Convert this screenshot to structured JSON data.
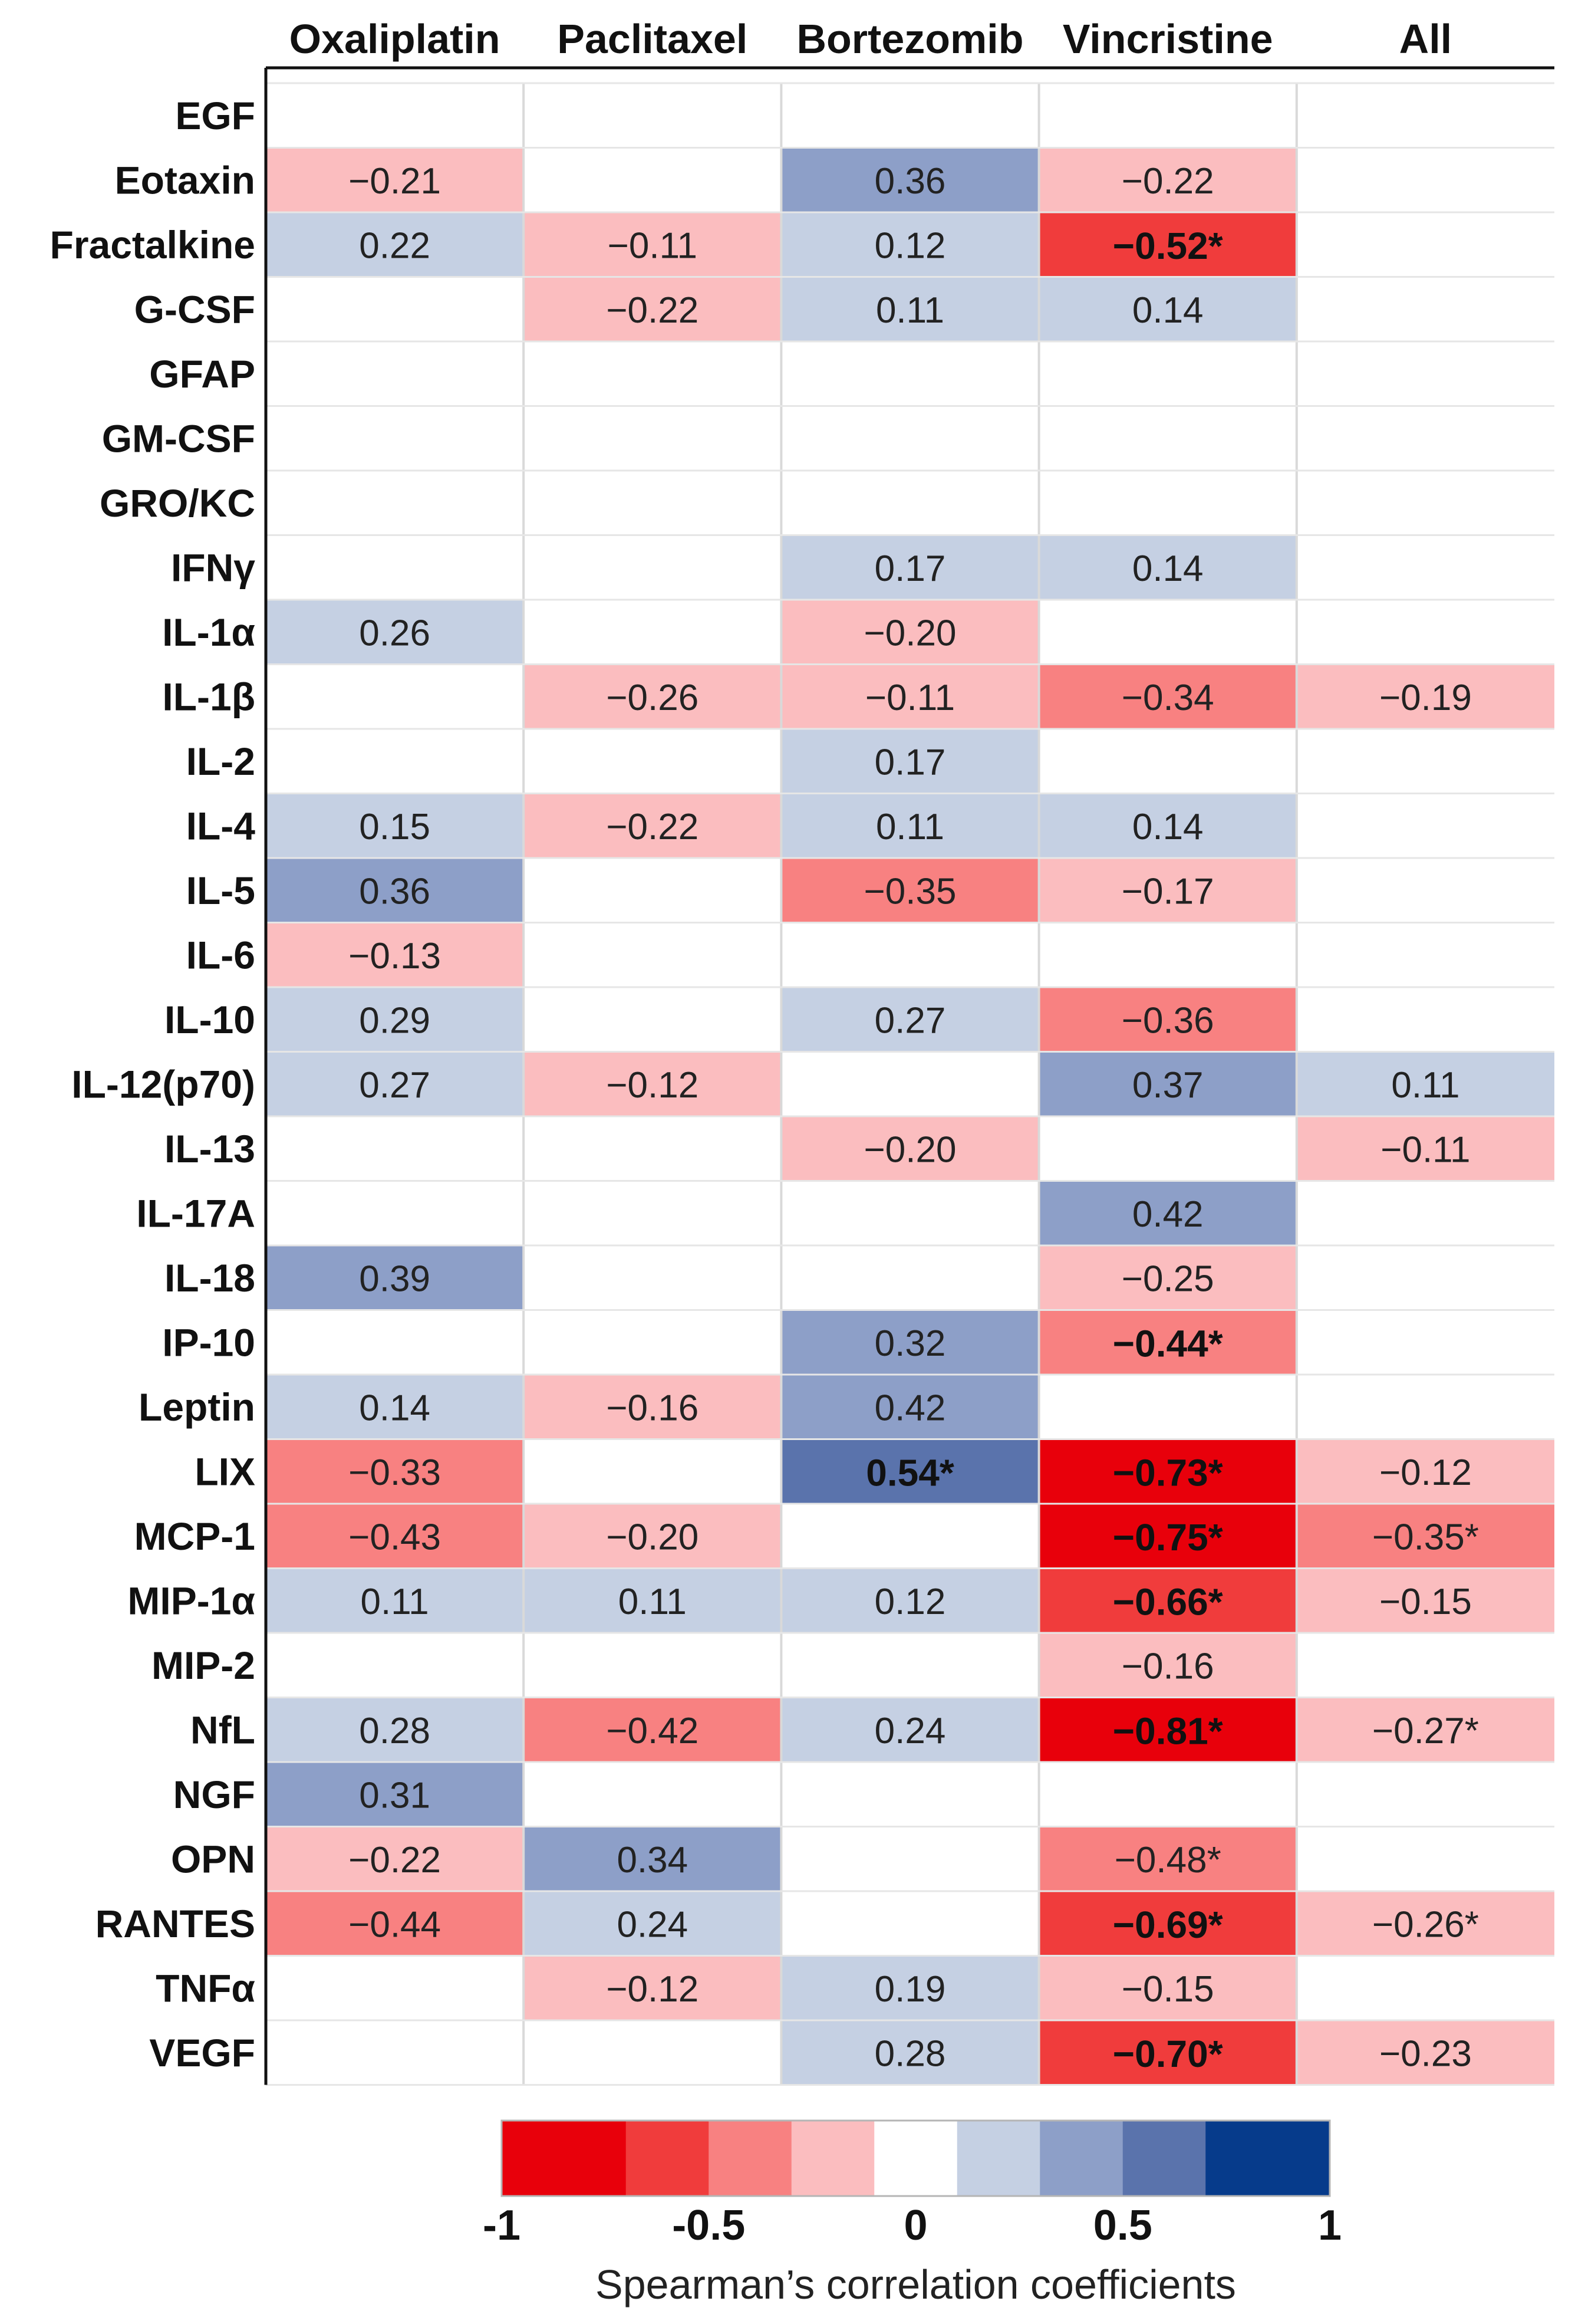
{
  "chart_data": {
    "type": "heatmap",
    "columns": [
      "Oxaliplatin",
      "Paclitaxel",
      "Bortezomib",
      "Vincristine",
      "All"
    ],
    "rows": [
      "EGF",
      "Eotaxin",
      "Fractalkine",
      "G-CSF",
      "GFAP",
      "GM-CSF",
      "GRO/KC",
      "IFNγ",
      "IL-1α",
      "IL-1β",
      "IL-2",
      "IL-4",
      "IL-5",
      "IL-6",
      "IL-10",
      "IL-12(p70)",
      "IL-13",
      "IL-17A",
      "IL-18",
      "IP-10",
      "Leptin",
      "LIX",
      "MCP-1",
      "MIP-1α",
      "MIP-2",
      "NfL",
      "NGF",
      "OPN",
      "RANTES",
      "TNFα",
      "VEGF"
    ],
    "values": [
      [
        null,
        null,
        null,
        null,
        null
      ],
      [
        -0.21,
        null,
        0.36,
        -0.22,
        null
      ],
      [
        0.22,
        -0.11,
        0.12,
        -0.52,
        null
      ],
      [
        null,
        -0.22,
        0.11,
        0.14,
        null
      ],
      [
        null,
        null,
        null,
        null,
        null
      ],
      [
        null,
        null,
        null,
        null,
        null
      ],
      [
        null,
        null,
        null,
        null,
        null
      ],
      [
        null,
        null,
        0.17,
        0.14,
        null
      ],
      [
        0.26,
        null,
        -0.2,
        null,
        null
      ],
      [
        null,
        -0.26,
        -0.11,
        -0.34,
        -0.19
      ],
      [
        null,
        null,
        0.17,
        null,
        null
      ],
      [
        0.15,
        -0.22,
        0.11,
        0.14,
        null
      ],
      [
        0.36,
        null,
        -0.35,
        -0.17,
        null
      ],
      [
        -0.13,
        null,
        null,
        null,
        null
      ],
      [
        0.29,
        null,
        0.27,
        -0.36,
        null
      ],
      [
        0.27,
        -0.12,
        null,
        0.37,
        0.11
      ],
      [
        null,
        null,
        -0.2,
        null,
        -0.11
      ],
      [
        null,
        null,
        null,
        0.42,
        null
      ],
      [
        0.39,
        null,
        null,
        -0.25,
        null
      ],
      [
        null,
        null,
        0.32,
        -0.44,
        null
      ],
      [
        0.14,
        -0.16,
        0.42,
        null,
        null
      ],
      [
        -0.33,
        null,
        0.54,
        -0.73,
        -0.12
      ],
      [
        -0.43,
        -0.2,
        null,
        -0.75,
        -0.35
      ],
      [
        0.11,
        0.11,
        0.12,
        -0.66,
        -0.15
      ],
      [
        null,
        null,
        null,
        -0.16,
        null
      ],
      [
        0.28,
        -0.42,
        0.24,
        -0.81,
        -0.27
      ],
      [
        0.31,
        null,
        null,
        null,
        null
      ],
      [
        -0.22,
        0.34,
        null,
        -0.48,
        null
      ],
      [
        -0.44,
        0.24,
        null,
        -0.69,
        -0.26
      ],
      [
        null,
        -0.12,
        0.19,
        -0.15,
        null
      ],
      [
        null,
        null,
        0.28,
        -0.7,
        -0.23
      ]
    ],
    "labels": [
      [
        "",
        "",
        "",
        "",
        ""
      ],
      [
        "−0.21",
        "",
        "0.36",
        "−0.22",
        ""
      ],
      [
        "0.22",
        "−0.11",
        "0.12",
        "−0.52*",
        ""
      ],
      [
        "",
        "−0.22",
        "0.11",
        "0.14",
        ""
      ],
      [
        "",
        "",
        "",
        "",
        ""
      ],
      [
        "",
        "",
        "",
        "",
        ""
      ],
      [
        "",
        "",
        "",
        "",
        ""
      ],
      [
        "",
        "",
        "0.17",
        "0.14",
        ""
      ],
      [
        "0.26",
        "",
        "−0.20",
        "",
        ""
      ],
      [
        "",
        "−0.26",
        "−0.11",
        "−0.34",
        "−0.19"
      ],
      [
        "",
        "",
        "0.17",
        "",
        ""
      ],
      [
        "0.15",
        "−0.22",
        "0.11",
        "0.14",
        ""
      ],
      [
        "0.36",
        "",
        "−0.35",
        "−0.17",
        ""
      ],
      [
        "−0.13",
        "",
        "",
        "",
        ""
      ],
      [
        "0.29",
        "",
        "0.27",
        "−0.36",
        ""
      ],
      [
        "0.27",
        "−0.12",
        "",
        "0.37",
        "0.11"
      ],
      [
        "",
        "",
        "−0.20",
        "",
        "−0.11"
      ],
      [
        "",
        "",
        "",
        "0.42",
        ""
      ],
      [
        "0.39",
        "",
        "",
        "−0.25",
        ""
      ],
      [
        "",
        "",
        "0.32",
        "−0.44*",
        ""
      ],
      [
        "0.14",
        "−0.16",
        "0.42",
        "",
        ""
      ],
      [
        "−0.33",
        "",
        "0.54*",
        "−0.73*",
        "−0.12"
      ],
      [
        "−0.43",
        "−0.20",
        "",
        "−0.75*",
        "−0.35*"
      ],
      [
        "0.11",
        "0.11",
        "0.12",
        "−0.66*",
        "−0.15"
      ],
      [
        "",
        "",
        "",
        "−0.16",
        ""
      ],
      [
        "0.28",
        "−0.42",
        "0.24",
        "−0.81*",
        "−0.27*"
      ],
      [
        "0.31",
        "",
        "",
        "",
        ""
      ],
      [
        "−0.22",
        "0.34",
        "",
        "−0.48*",
        ""
      ],
      [
        "−0.44",
        "0.24",
        "",
        "−0.69*",
        "−0.26*"
      ],
      [
        "",
        "−0.12",
        "0.19",
        "−0.15",
        ""
      ],
      [
        "",
        "",
        "0.28",
        "−0.70*",
        "−0.23"
      ]
    ],
    "bold_labels": [
      [
        2,
        3
      ],
      [
        19,
        3
      ],
      [
        21,
        2
      ],
      [
        21,
        3
      ],
      [
        22,
        3
      ],
      [
        23,
        3
      ],
      [
        25,
        3
      ],
      [
        28,
        3
      ],
      [
        30,
        3
      ]
    ],
    "color_scale": {
      "title": "Spearman’s correlation coefficients",
      "range": [
        -1,
        1
      ],
      "bin_edges": [
        -1,
        -0.7,
        -0.5,
        -0.3,
        -0.1,
        0.1,
        0.3,
        0.5,
        0.7,
        1
      ],
      "bin_colors": [
        "#e8000b",
        "#f03c3c",
        "#f88181",
        "#fbbdbf",
        "#ffffff",
        "#c5d0e3",
        "#8d9fc8",
        "#5a73ac",
        "#063b8b"
      ],
      "tick_values": [
        -1,
        -0.5,
        0,
        0.5,
        1
      ],
      "tick_labels": [
        "-1",
        "-0.5",
        "0",
        "0.5",
        "1"
      ]
    }
  }
}
